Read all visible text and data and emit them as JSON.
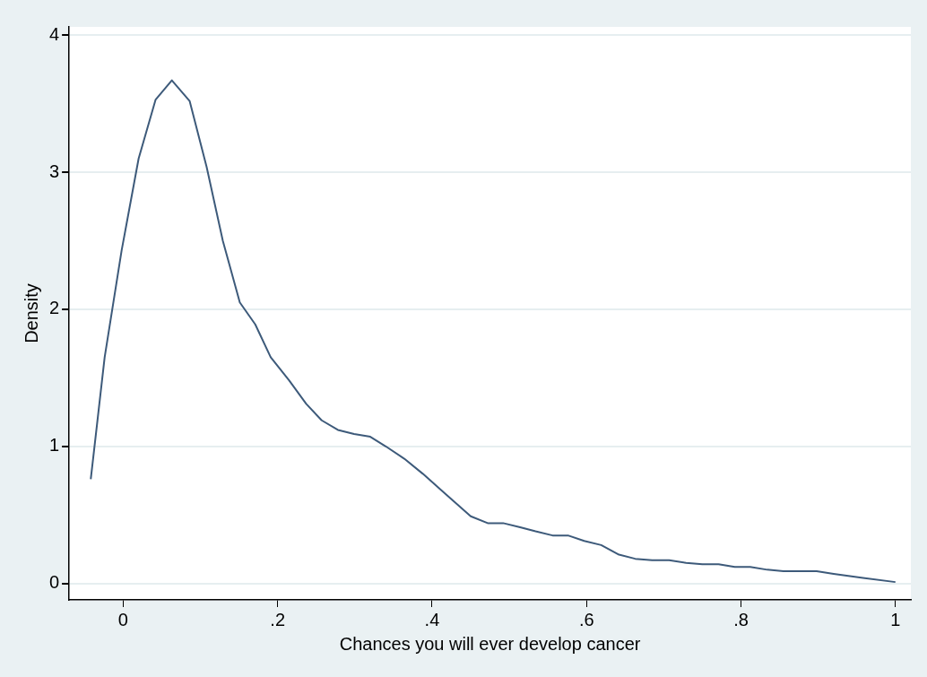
{
  "chart_data": {
    "type": "line",
    "xlabel": "Chances you will ever develop cancer",
    "ylabel": "Density",
    "xlim": [
      -0.07,
      1.02
    ],
    "ylim": [
      -0.12,
      4.06
    ],
    "xticks": [
      {
        "value": 0,
        "label": "0"
      },
      {
        "value": 0.2,
        "label": ".2"
      },
      {
        "value": 0.4,
        "label": ".4"
      },
      {
        "value": 0.6,
        "label": ".6"
      },
      {
        "value": 0.8,
        "label": ".8"
      },
      {
        "value": 1,
        "label": "1"
      }
    ],
    "yticks": [
      0,
      1,
      2,
      3,
      4
    ],
    "grid": "y",
    "legend": false,
    "marker": "none",
    "line_style": "solid",
    "series": [
      {
        "color": "#3d5a7a",
        "x": [
          -0.042,
          -0.024,
          -0.002,
          0.02,
          0.042,
          0.063,
          0.086,
          0.108,
          0.129,
          0.151,
          0.171,
          0.191,
          0.215,
          0.237,
          0.257,
          0.278,
          0.299,
          0.32,
          0.34,
          0.364,
          0.388,
          0.412,
          0.43,
          0.45,
          0.472,
          0.492,
          0.514,
          0.534,
          0.556,
          0.576,
          0.597,
          0.619,
          0.642,
          0.663,
          0.685,
          0.707,
          0.729,
          0.75,
          0.771,
          0.792,
          0.812,
          0.834,
          0.855,
          0.877,
          0.898,
          0.92,
          0.958,
          1.0
        ],
        "values": [
          0.76,
          1.65,
          2.43,
          3.1,
          3.53,
          3.67,
          3.52,
          3.04,
          2.5,
          2.05,
          1.89,
          1.65,
          1.48,
          1.31,
          1.19,
          1.12,
          1.09,
          1.07,
          1.0,
          0.91,
          0.8,
          0.68,
          0.59,
          0.49,
          0.44,
          0.44,
          0.41,
          0.38,
          0.35,
          0.35,
          0.31,
          0.28,
          0.21,
          0.18,
          0.17,
          0.17,
          0.15,
          0.14,
          0.14,
          0.12,
          0.12,
          0.1,
          0.09,
          0.09,
          0.09,
          0.07,
          0.04,
          0.01
        ]
      }
    ]
  }
}
